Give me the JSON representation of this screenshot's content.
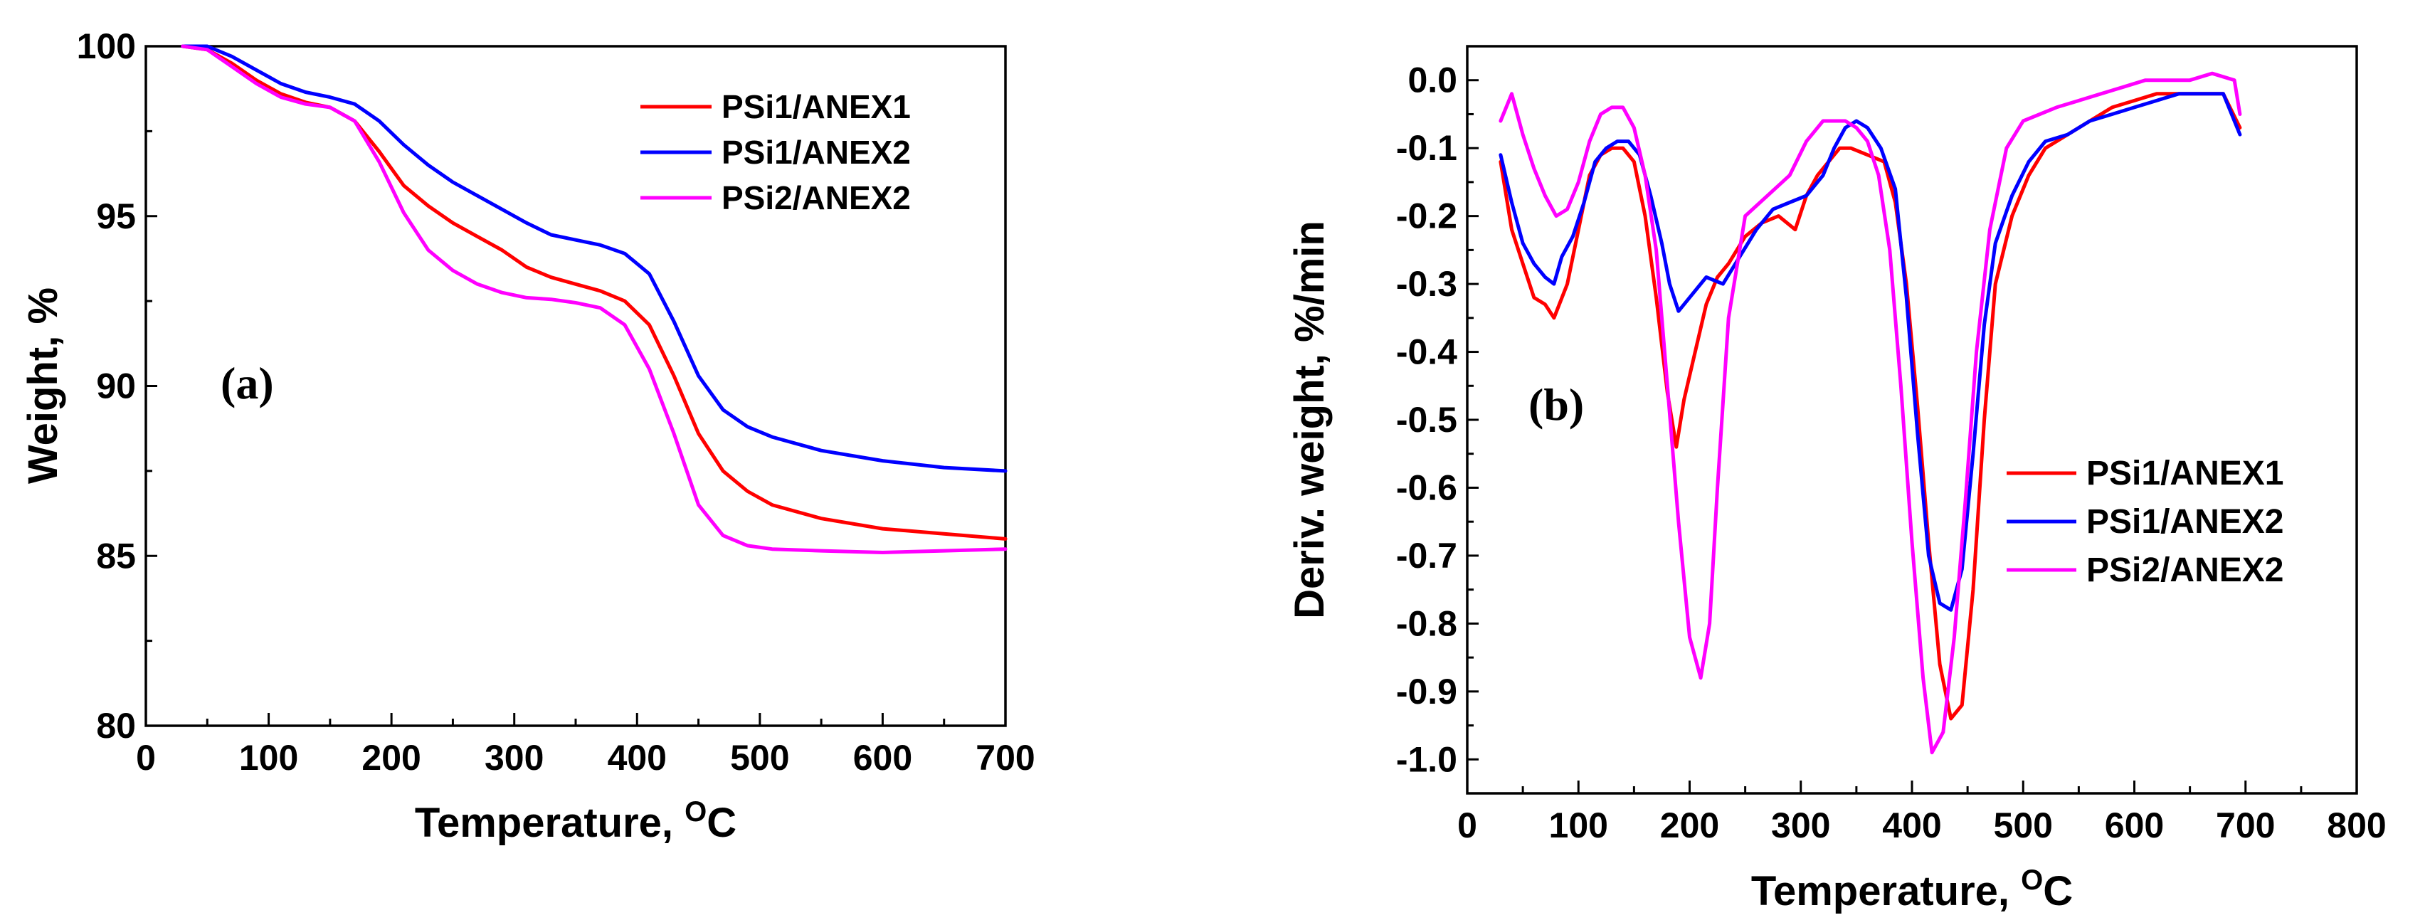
{
  "chart_data": [
    {
      "type": "line",
      "panel_label": "(a)",
      "xlabel": "Temperature, ",
      "xlabel_sup": "O",
      "xlabel_after": "C",
      "ylabel": "Weight, %",
      "xlim": [
        0,
        700
      ],
      "ylim": [
        80,
        100
      ],
      "xticks": [
        0,
        100,
        200,
        300,
        400,
        500,
        600,
        700
      ],
      "yticks": [
        80,
        85,
        90,
        95,
        100
      ],
      "legend_position": "top-right",
      "series": [
        {
          "name": "PSi1/ANEX1",
          "color": "#ff0000",
          "x": [
            30,
            50,
            70,
            90,
            110,
            130,
            150,
            170,
            190,
            210,
            230,
            250,
            270,
            290,
            310,
            330,
            350,
            370,
            390,
            410,
            430,
            450,
            470,
            490,
            510,
            550,
            600,
            650,
            700
          ],
          "y": [
            100,
            99.9,
            99.5,
            99.0,
            98.6,
            98.35,
            98.2,
            97.8,
            96.9,
            95.9,
            95.3,
            94.8,
            94.4,
            94.0,
            93.5,
            93.2,
            93.0,
            92.8,
            92.5,
            91.8,
            90.3,
            88.6,
            87.5,
            86.9,
            86.5,
            86.1,
            85.8,
            85.65,
            85.5
          ]
        },
        {
          "name": "PSi1/ANEX2",
          "color": "#0000ff",
          "x": [
            30,
            50,
            70,
            90,
            110,
            130,
            150,
            170,
            190,
            210,
            230,
            250,
            270,
            290,
            310,
            330,
            350,
            370,
            390,
            410,
            430,
            450,
            470,
            490,
            510,
            550,
            600,
            650,
            700
          ],
          "y": [
            100,
            100,
            99.7,
            99.3,
            98.9,
            98.65,
            98.5,
            98.3,
            97.8,
            97.1,
            96.5,
            96.0,
            95.6,
            95.2,
            94.8,
            94.45,
            94.3,
            94.15,
            93.9,
            93.3,
            91.9,
            90.3,
            89.3,
            88.8,
            88.5,
            88.1,
            87.8,
            87.6,
            87.5
          ]
        },
        {
          "name": "PSi2/ANEX2",
          "color": "#ff00ff",
          "x": [
            30,
            50,
            70,
            90,
            110,
            130,
            150,
            170,
            190,
            210,
            230,
            250,
            270,
            290,
            310,
            330,
            350,
            370,
            390,
            410,
            430,
            450,
            470,
            490,
            510,
            550,
            600,
            650,
            700
          ],
          "y": [
            100,
            99.9,
            99.4,
            98.9,
            98.5,
            98.3,
            98.2,
            97.8,
            96.6,
            95.1,
            94.0,
            93.4,
            93.0,
            92.75,
            92.6,
            92.55,
            92.45,
            92.3,
            91.8,
            90.5,
            88.6,
            86.5,
            85.6,
            85.3,
            85.2,
            85.15,
            85.1,
            85.15,
            85.2
          ]
        }
      ]
    },
    {
      "type": "line",
      "panel_label": "(b)",
      "xlabel": "Temperature, ",
      "xlabel_sup": "O",
      "xlabel_after": "C",
      "ylabel": "Deriv. weight, %/min",
      "xlim": [
        0,
        800
      ],
      "ylim": [
        -1.05,
        0.05
      ],
      "xticks": [
        0,
        100,
        200,
        300,
        400,
        500,
        600,
        700,
        800
      ],
      "yticks": [
        0.0,
        -0.1,
        -0.2,
        -0.3,
        -0.4,
        -0.5,
        -0.6,
        -0.7,
        -0.8,
        -0.9,
        -1.0
      ],
      "ytick_labels": [
        "0.0",
        "-0.1",
        "-0.2",
        "-0.3",
        "-0.4",
        "-0.5",
        "-0.6",
        "-0.7",
        "-0.8",
        "-0.9",
        "-1.0"
      ],
      "legend_position": "bottom-right",
      "series": [
        {
          "name": "PSi1/ANEX1",
          "color": "#ff0000",
          "x": [
            30,
            40,
            50,
            60,
            70,
            78,
            90,
            100,
            110,
            120,
            130,
            140,
            150,
            160,
            170,
            180,
            188,
            195,
            205,
            215,
            225,
            235,
            250,
            265,
            280,
            295,
            305,
            315,
            325,
            335,
            345,
            360,
            375,
            385,
            395,
            405,
            415,
            425,
            435,
            445,
            455,
            465,
            475,
            490,
            505,
            520,
            540,
            560,
            580,
            600,
            620,
            640,
            660,
            680,
            695
          ],
          "y": [
            -0.12,
            -0.22,
            -0.27,
            -0.32,
            -0.33,
            -0.35,
            -0.3,
            -0.22,
            -0.14,
            -0.11,
            -0.1,
            -0.1,
            -0.12,
            -0.2,
            -0.32,
            -0.46,
            -0.54,
            -0.47,
            -0.4,
            -0.33,
            -0.29,
            -0.27,
            -0.23,
            -0.21,
            -0.2,
            -0.22,
            -0.17,
            -0.14,
            -0.12,
            -0.1,
            -0.1,
            -0.11,
            -0.12,
            -0.18,
            -0.3,
            -0.48,
            -0.68,
            -0.86,
            -0.94,
            -0.92,
            -0.75,
            -0.5,
            -0.3,
            -0.2,
            -0.14,
            -0.1,
            -0.08,
            -0.06,
            -0.04,
            -0.03,
            -0.02,
            -0.02,
            -0.02,
            -0.02,
            -0.07
          ]
        },
        {
          "name": "PSi1/ANEX2",
          "color": "#0000ff",
          "x": [
            30,
            40,
            50,
            60,
            70,
            78,
            85,
            95,
            105,
            115,
            125,
            135,
            145,
            155,
            165,
            175,
            182,
            190,
            200,
            215,
            230,
            245,
            260,
            275,
            290,
            305,
            320,
            330,
            340,
            350,
            360,
            372,
            385,
            395,
            405,
            415,
            425,
            435,
            445,
            455,
            465,
            475,
            490,
            505,
            520,
            540,
            560,
            580,
            600,
            620,
            640,
            660,
            680,
            695
          ],
          "y": [
            -0.11,
            -0.18,
            -0.24,
            -0.27,
            -0.29,
            -0.3,
            -0.26,
            -0.23,
            -0.18,
            -0.12,
            -0.1,
            -0.09,
            -0.09,
            -0.11,
            -0.17,
            -0.24,
            -0.3,
            -0.34,
            -0.32,
            -0.29,
            -0.3,
            -0.26,
            -0.22,
            -0.19,
            -0.18,
            -0.17,
            -0.14,
            -0.1,
            -0.07,
            -0.06,
            -0.07,
            -0.1,
            -0.16,
            -0.32,
            -0.52,
            -0.7,
            -0.77,
            -0.78,
            -0.72,
            -0.55,
            -0.36,
            -0.24,
            -0.17,
            -0.12,
            -0.09,
            -0.08,
            -0.06,
            -0.05,
            -0.04,
            -0.03,
            -0.02,
            -0.02,
            -0.02,
            -0.08
          ]
        },
        {
          "name": "PSi2/ANEX2",
          "color": "#ff00ff",
          "x": [
            30,
            40,
            50,
            60,
            70,
            80,
            90,
            100,
            110,
            120,
            130,
            140,
            150,
            160,
            170,
            180,
            190,
            200,
            210,
            218,
            225,
            235,
            250,
            270,
            290,
            305,
            320,
            330,
            340,
            350,
            360,
            370,
            380,
            390,
            400,
            410,
            418,
            428,
            438,
            448,
            458,
            470,
            485,
            500,
            515,
            530,
            550,
            570,
            590,
            610,
            630,
            650,
            670,
            690,
            695
          ],
          "y": [
            -0.06,
            -0.02,
            -0.08,
            -0.13,
            -0.17,
            -0.2,
            -0.19,
            -0.15,
            -0.09,
            -0.05,
            -0.04,
            -0.04,
            -0.07,
            -0.14,
            -0.25,
            -0.45,
            -0.65,
            -0.82,
            -0.88,
            -0.8,
            -0.6,
            -0.35,
            -0.2,
            -0.17,
            -0.14,
            -0.09,
            -0.06,
            -0.06,
            -0.06,
            -0.07,
            -0.09,
            -0.14,
            -0.25,
            -0.45,
            -0.68,
            -0.88,
            -0.99,
            -0.96,
            -0.82,
            -0.62,
            -0.4,
            -0.22,
            -0.1,
            -0.06,
            -0.05,
            -0.04,
            -0.03,
            -0.02,
            -0.01,
            0.0,
            0.0,
            0.0,
            0.01,
            0.0,
            -0.05
          ]
        }
      ]
    }
  ]
}
